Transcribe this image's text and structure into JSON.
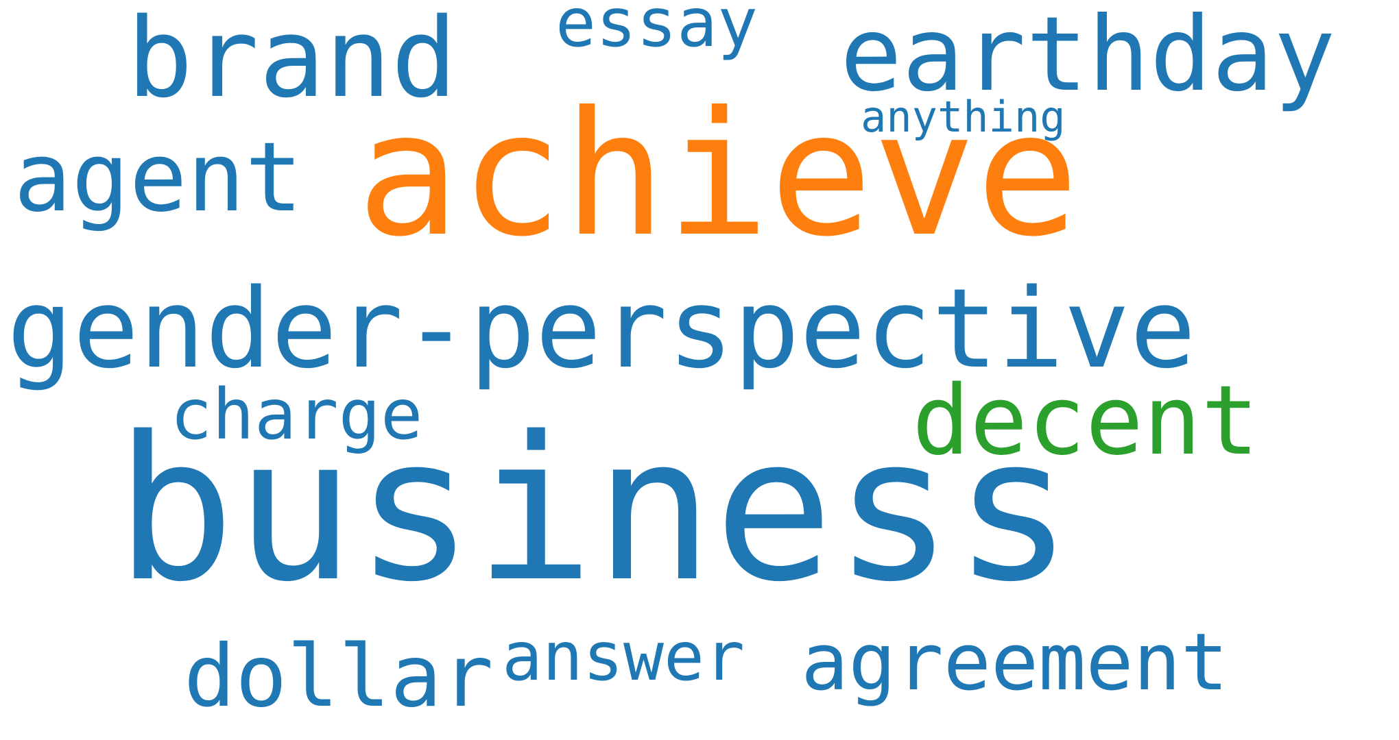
{
  "wordcloud": {
    "words": [
      {
        "id": "business",
        "text": "business",
        "color": "#1f77b4"
      },
      {
        "id": "achieve",
        "text": "achieve",
        "color": "#ff7f0e"
      },
      {
        "id": "gender-perspective",
        "text": "gender-perspective",
        "color": "#1f77b4"
      },
      {
        "id": "earthday",
        "text": "earthday",
        "color": "#1f77b4"
      },
      {
        "id": "brand",
        "text": "brand",
        "color": "#1f77b4"
      },
      {
        "id": "agent",
        "text": "agent",
        "color": "#1f77b4"
      },
      {
        "id": "decent",
        "text": "decent",
        "color": "#2ca02c"
      },
      {
        "id": "essay",
        "text": "essay",
        "color": "#1f77b4"
      },
      {
        "id": "anything",
        "text": "anything",
        "color": "#1f77b4"
      },
      {
        "id": "charge",
        "text": "charge",
        "color": "#1f77b4"
      },
      {
        "id": "dollar",
        "text": "dollar",
        "color": "#1f77b4"
      },
      {
        "id": "answer",
        "text": "answer",
        "color": "#1f77b4"
      },
      {
        "id": "agreement",
        "text": "agreement",
        "color": "#1f77b4"
      }
    ]
  }
}
